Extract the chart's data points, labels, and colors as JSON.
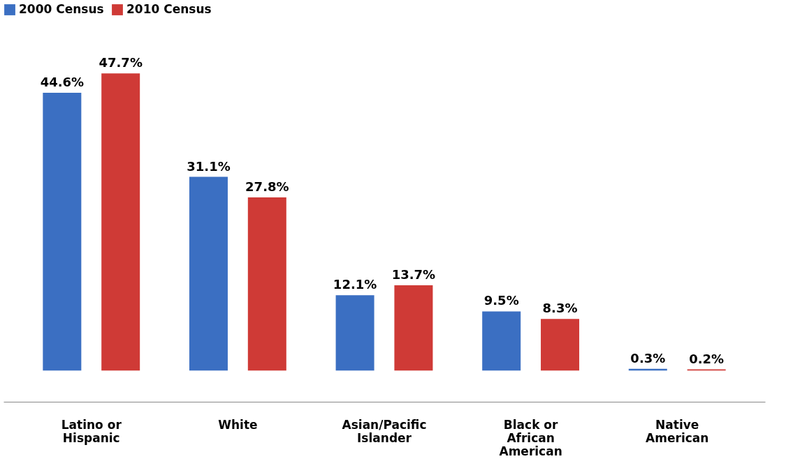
{
  "chart_data": {
    "type": "bar",
    "categories": [
      "Latino or Hispanic",
      "White",
      "Asian/Pacific Islander",
      "Black or African American",
      "Native American"
    ],
    "series": [
      {
        "name": "2000 Census",
        "color": "#3b6fc2",
        "values": [
          44.6,
          31.1,
          12.1,
          9.5,
          0.3
        ],
        "value_labels": [
          "44.6%",
          "31.1%",
          "12.1%",
          "9.5%",
          "0.3%"
        ]
      },
      {
        "name": "2010 Census",
        "color": "#cf3a36",
        "values": [
          47.7,
          27.8,
          13.7,
          8.3,
          0.2
        ],
        "value_labels": [
          "47.7%",
          "27.8%",
          "13.7%",
          "8.3%",
          "0.2%"
        ]
      }
    ],
    "legend": "top"
  }
}
